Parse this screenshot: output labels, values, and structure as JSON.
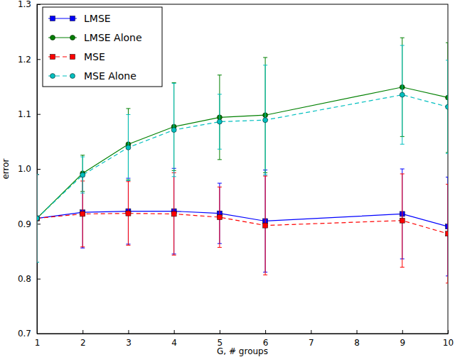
{
  "chart_data": {
    "type": "line",
    "x_label": "G, # groups",
    "y_label": "error",
    "x": [
      1,
      2,
      3,
      4,
      5,
      6,
      9,
      10
    ],
    "xlim": [
      1,
      10
    ],
    "xticks": [
      1,
      2,
      3,
      4,
      5,
      6,
      7,
      8,
      9,
      10
    ],
    "ylim": [
      0.7,
      1.3
    ],
    "yticks": [
      0.7,
      0.8,
      0.9,
      {
        "value": 1,
        "label": "1.0"
      },
      1.1,
      1.2,
      1.3
    ],
    "legend": "upper left",
    "series": [
      {
        "name": "LMSE",
        "color": "#0000ff",
        "marker": "square",
        "line_style": "solid",
        "values": [
          0.91,
          0.921,
          0.923,
          0.923,
          0.919,
          0.905,
          0.918,
          0.895
        ],
        "errors": [
          0.08,
          0.065,
          0.06,
          0.078,
          0.055,
          0.093,
          0.082,
          0.09
        ]
      },
      {
        "name": "LMSE Alone",
        "color": "#008000",
        "marker": "circle",
        "line_style": "solid",
        "values": [
          0.91,
          0.992,
          1.045,
          1.077,
          1.094,
          1.098,
          1.149,
          1.13
        ],
        "errors": [
          0.08,
          0.033,
          0.065,
          0.08,
          0.077,
          0.105,
          0.09,
          0.1
        ]
      },
      {
        "name": "MSE",
        "color": "#ff0000",
        "marker": "square",
        "line_style": "dashed",
        "values": [
          0.91,
          0.918,
          0.919,
          0.918,
          0.912,
          0.897,
          0.906,
          0.882
        ],
        "errors": [
          0.08,
          0.06,
          0.058,
          0.075,
          0.055,
          0.09,
          0.085,
          0.09
        ]
      },
      {
        "name": "MSE Alone",
        "color": "#00bfbf",
        "marker": "circle",
        "line_style": "dashed",
        "values": [
          0.91,
          0.989,
          1.039,
          1.071,
          1.086,
          1.089,
          1.135,
          1.113
        ],
        "errors": [
          0.08,
          0.033,
          0.06,
          0.085,
          0.05,
          0.1,
          0.09,
          0.085
        ]
      }
    ]
  }
}
